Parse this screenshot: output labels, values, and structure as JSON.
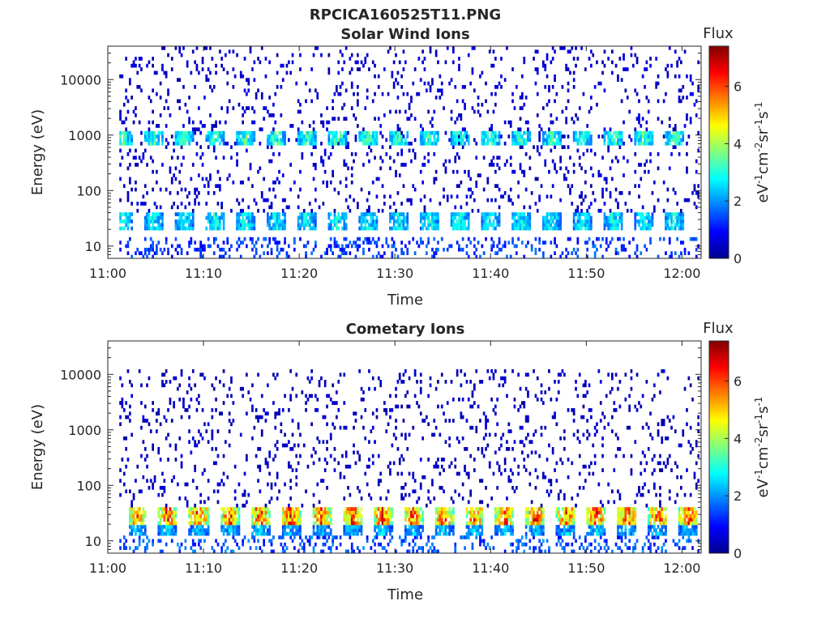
{
  "figure": {
    "title": "RPCICA160525T11.PNG",
    "background": "#ffffff"
  },
  "chart_data": [
    {
      "type": "heatmap",
      "title": "Solar Wind Ions",
      "xlabel": "Time",
      "ylabel": "Energy (eV)",
      "x_ticks": [
        "11:00",
        "11:10",
        "11:20",
        "11:30",
        "11:40",
        "11:50",
        "12:00"
      ],
      "x_range": [
        "11:00",
        "12:02"
      ],
      "y_scale": "log",
      "y_ticks": [
        10,
        100,
        1000,
        10000
      ],
      "y_range": [
        6,
        40000
      ],
      "colorbar": {
        "title": "Flux",
        "label": "eV-1cm-2sr-1s-1",
        "ticks": [
          0,
          2,
          4,
          6
        ],
        "range": [
          0,
          7.4
        ],
        "colormap": "jet"
      },
      "bands": [
        {
          "energy_range": [
            20,
            42
          ],
          "typical_flux": 2.8,
          "note": "repeating bursts each sweep"
        },
        {
          "energy_range": [
            700,
            1100
          ],
          "typical_flux": 3.2,
          "note": "narrow peak at start of each sweep"
        },
        {
          "energy_range": [
            6,
            14
          ],
          "typical_flux": 1.3,
          "note": "sparse low-energy columns"
        },
        {
          "energy_range": [
            40,
            40000
          ],
          "typical_flux": 0.6,
          "note": "scattered background counts"
        }
      ],
      "burst_times_min": [
        1.5,
        4.7,
        7.9,
        11.1,
        14.3,
        17.5,
        20.7,
        23.9,
        27.1,
        30.3,
        33.5,
        36.7,
        39.9,
        43.1,
        46.3,
        49.5,
        52.7,
        55.9,
        59.1
      ]
    },
    {
      "type": "heatmap",
      "title": "Cometary Ions",
      "xlabel": "Time",
      "ylabel": "Energy (eV)",
      "x_ticks": [
        "11:00",
        "11:10",
        "11:20",
        "11:30",
        "11:40",
        "11:50",
        "12:00"
      ],
      "x_range": [
        "11:00",
        "12:02"
      ],
      "y_scale": "log",
      "y_ticks": [
        10,
        100,
        1000,
        10000
      ],
      "y_range": [
        6,
        40000
      ],
      "colorbar": {
        "title": "Flux",
        "label": "eV-1cm-2sr-1s-1",
        "ticks": [
          0,
          2,
          4,
          6
        ],
        "range": [
          0,
          7.4
        ],
        "colormap": "jet"
      },
      "bands": [
        {
          "energy_range": [
            20,
            40
          ],
          "typical_flux": 5.8,
          "note": "intense bursts each sweep"
        },
        {
          "energy_range": [
            12,
            20
          ],
          "typical_flux": 2.4,
          "note": "below the bursts"
        },
        {
          "energy_range": [
            6,
            12
          ],
          "typical_flux": 1.5,
          "note": "sparse low-energy columns"
        },
        {
          "energy_range": [
            40,
            12000
          ],
          "typical_flux": 0.5,
          "note": "scattered background counts"
        }
      ],
      "burst_times_min": [
        3.0,
        6.2,
        9.4,
        12.6,
        15.8,
        19.0,
        22.2,
        25.4,
        28.6,
        31.8,
        35.0,
        38.2,
        41.4,
        44.6,
        47.8,
        51.0,
        54.2,
        57.4,
        60.6
      ]
    }
  ]
}
